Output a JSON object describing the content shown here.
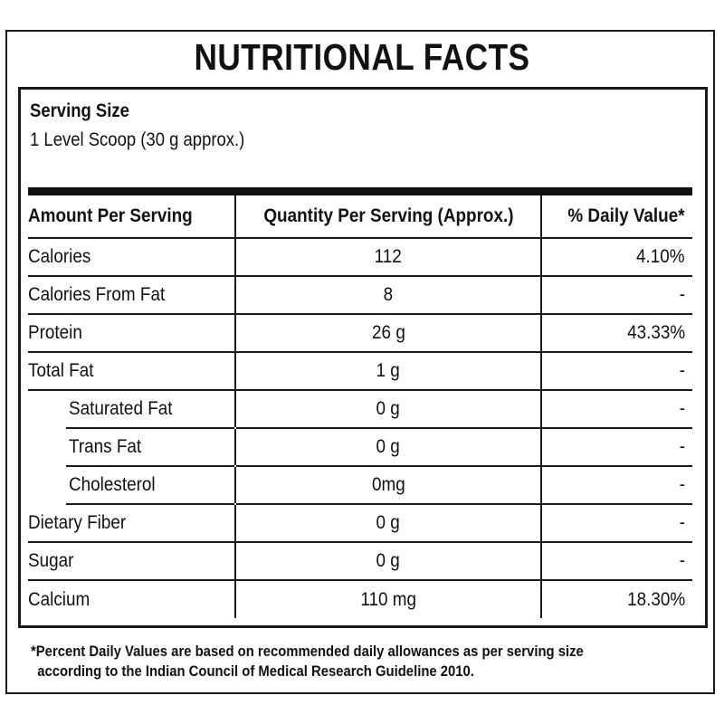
{
  "title": "NUTRITIONAL FACTS",
  "serving": {
    "label": "Serving Size",
    "value": "1 Level Scoop (30 g approx.)"
  },
  "table": {
    "headers": [
      "Amount Per Serving",
      "Quantity Per Serving (Approx.)",
      "% Daily Value*"
    ],
    "rows": [
      {
        "name": "Calories",
        "qty": "112",
        "dv": "4.10%",
        "indent": false
      },
      {
        "name": "Calories From Fat",
        "qty": "8",
        "dv": "-",
        "indent": false
      },
      {
        "name": "Protein",
        "qty": "26 g",
        "dv": "43.33%",
        "indent": false
      },
      {
        "name": "Total Fat",
        "qty": "1 g",
        "dv": "-",
        "indent": false
      },
      {
        "name": "Saturated Fat",
        "qty": "0 g",
        "dv": "-",
        "indent": true
      },
      {
        "name": "Trans Fat",
        "qty": "0 g",
        "dv": "-",
        "indent": true
      },
      {
        "name": "Cholesterol",
        "qty": "0mg",
        "dv": "-",
        "indent": true
      },
      {
        "name": "Dietary Fiber",
        "qty": "0 g",
        "dv": "-",
        "indent": false
      },
      {
        "name": "Sugar",
        "qty": "0 g",
        "dv": "-",
        "indent": false
      },
      {
        "name": "Calcium",
        "qty": "110 mg",
        "dv": "18.30%",
        "indent": false
      }
    ]
  },
  "footnote": {
    "line1": "*Percent Daily Values are based on recommended daily allowances as per serving size",
    "line2": "according to the Indian Council of Medical Research Guideline 2010."
  }
}
